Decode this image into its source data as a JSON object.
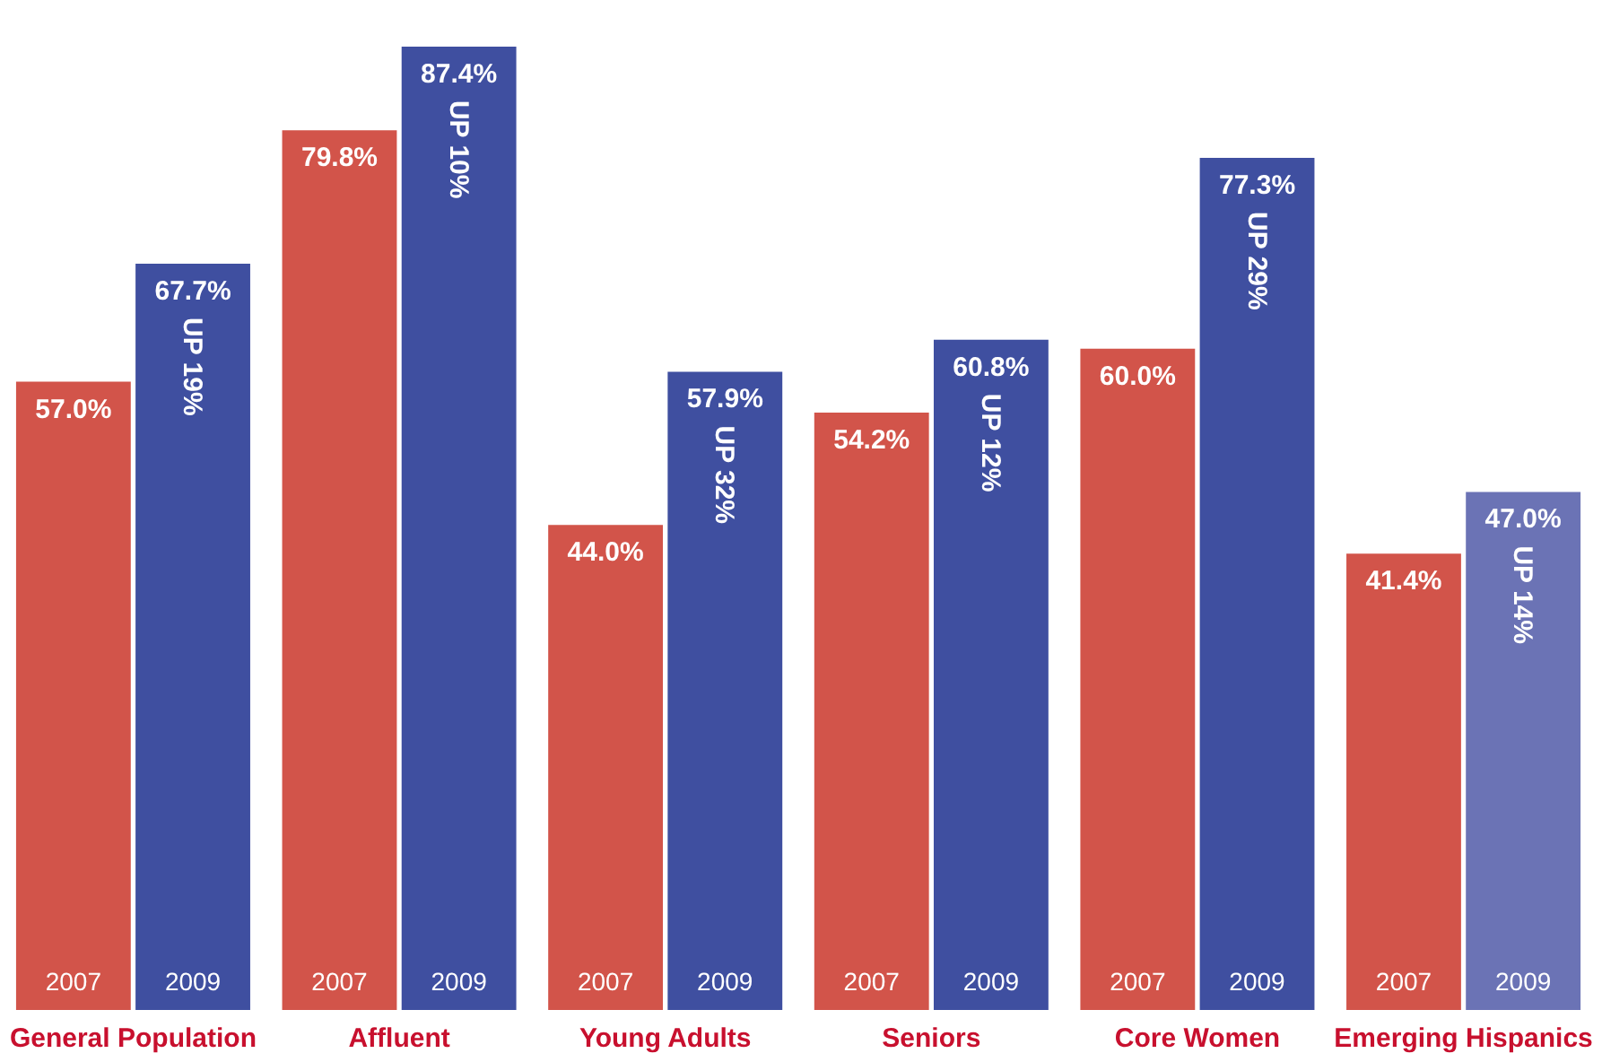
{
  "chart_data": {
    "type": "bar",
    "categories": [
      "General Population",
      "Affluent",
      "Young Adults",
      "Seniors",
      "Core Women",
      "Emerging Hispanics"
    ],
    "series": [
      {
        "name": "2007",
        "color": "#d2544a",
        "values": [
          57.0,
          79.8,
          44.0,
          54.2,
          60.0,
          41.4
        ],
        "value_labels": [
          "57.0%",
          "79.8%",
          "44.0%",
          "54.2%",
          "60.0%",
          "41.4%"
        ]
      },
      {
        "name": "2009",
        "colors": [
          "#3f4fa0",
          "#3f4fa0",
          "#3f4fa0",
          "#3f4fa0",
          "#3f4fa0",
          "#6b73b5"
        ],
        "values": [
          67.7,
          87.4,
          57.9,
          60.8,
          77.3,
          47.0
        ],
        "value_labels": [
          "67.7%",
          "87.4%",
          "57.9%",
          "60.8%",
          "77.3%",
          "47.0%"
        ]
      }
    ],
    "annotations": [
      {
        "text": "UP 19%",
        "x": "General Population",
        "y": 67.7
      },
      {
        "text": "UP 10%",
        "x": "Affluent",
        "y": 87.4
      },
      {
        "text": "UP 32%",
        "x": "Young Adults",
        "y": 57.9
      },
      {
        "text": "UP 12%",
        "x": "Seniors",
        "y": 60.8
      },
      {
        "text": "UP 29%",
        "x": "Core Women",
        "y": 77.3
      },
      {
        "text": "UP 14%",
        "x": "Emerging Hispanics",
        "y": 47.0
      }
    ]
  }
}
